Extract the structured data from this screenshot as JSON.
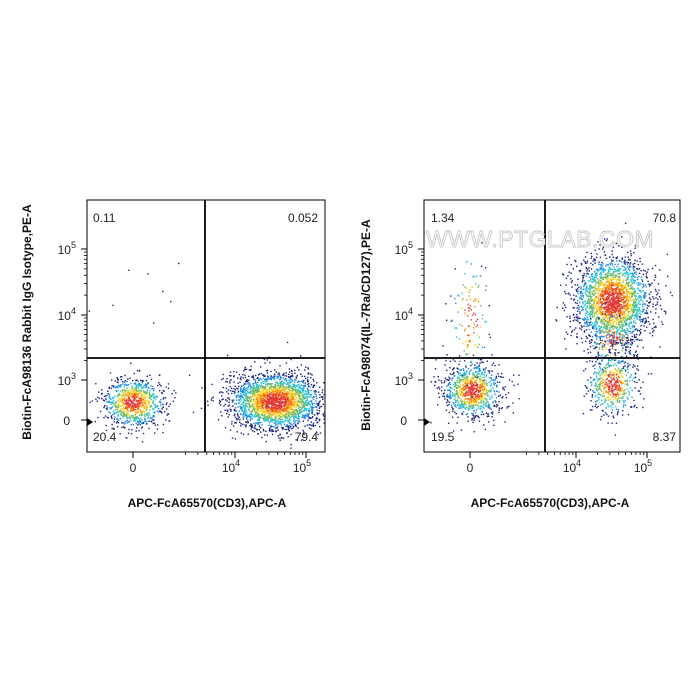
{
  "watermark": "WWW.PTGLAB.COM",
  "chart_data": [
    {
      "type": "scatter",
      "subtype": "flow-cytometry-density-dot-plot",
      "xlabel": "APC-FcA65570(CD3),APC-A",
      "ylabel": "Biotin-FcA98136 Rabbit IgG Isotype,PE-A",
      "x_scale": "biexponential",
      "y_scale": "biexponential",
      "x_ticks": [
        {
          "value": 0,
          "label": "0"
        },
        {
          "value": 10000,
          "label": "10",
          "exp": "4"
        },
        {
          "value": 100000,
          "label": "10",
          "exp": "5"
        }
      ],
      "y_ticks": [
        {
          "value": 0,
          "label": "0"
        },
        {
          "value": 1000,
          "label": "10",
          "exp": "3"
        },
        {
          "value": 10000,
          "label": "10",
          "exp": "4"
        },
        {
          "value": 100000,
          "label": "10",
          "exp": "5"
        }
      ],
      "quadrant_percentages": {
        "upper_left": "0.11",
        "upper_right": "0.052",
        "lower_left": "20.4",
        "lower_right": "79.4"
      },
      "color_scale": [
        "#1a237e",
        "#1e88e5",
        "#26c6da",
        "#66bb6a",
        "#fdd835",
        "#fb8c00",
        "#e53935"
      ]
    },
    {
      "type": "scatter",
      "subtype": "flow-cytometry-density-dot-plot",
      "xlabel": "APC-FcA65570(CD3),APC-A",
      "ylabel": "Biotin-FcA98074(IL-7Ra/CD127),PE-A",
      "x_scale": "biexponential",
      "y_scale": "biexponential",
      "x_ticks": [
        {
          "value": 0,
          "label": "0"
        },
        {
          "value": 10000,
          "label": "10",
          "exp": "4"
        },
        {
          "value": 100000,
          "label": "10",
          "exp": "5"
        }
      ],
      "y_ticks": [
        {
          "value": 0,
          "label": "0"
        },
        {
          "value": 1000,
          "label": "10",
          "exp": "3"
        },
        {
          "value": 10000,
          "label": "10",
          "exp": "4"
        },
        {
          "value": 100000,
          "label": "10",
          "exp": "5"
        }
      ],
      "quadrant_percentages": {
        "upper_left": "1.34",
        "upper_right": "70.8",
        "lower_left": "19.5",
        "lower_right": "8.37"
      },
      "color_scale": [
        "#1a237e",
        "#1e88e5",
        "#26c6da",
        "#66bb6a",
        "#fdd835",
        "#fb8c00",
        "#e53935"
      ]
    }
  ]
}
